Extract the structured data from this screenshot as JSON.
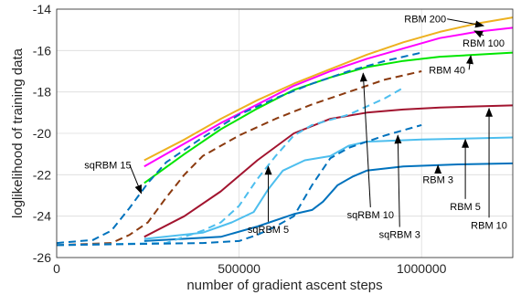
{
  "chart_data": {
    "type": "line",
    "xlabel": "number of gradient ascent steps",
    "ylabel": "loglikelihood of training data",
    "xlim": [
      0,
      1250000
    ],
    "ylim": [
      -26,
      -14
    ],
    "grid": true,
    "xticks": [
      0,
      500000,
      1000000
    ],
    "xtick_labels": [
      "0",
      "500000",
      "1000000"
    ],
    "yticks": [
      -26,
      -24,
      -22,
      -20,
      -18,
      -16,
      -14
    ],
    "ytick_labels": [
      "-26",
      "-24",
      "-22",
      "-20",
      "-18",
      "-16",
      "-14"
    ],
    "series": [
      {
        "name": "RBM 200",
        "style": "solid",
        "color": "#EDB120",
        "x": [
          240000,
          350000,
          450000,
          550000,
          650000,
          750000,
          850000,
          950000,
          1050000,
          1150000,
          1250000
        ],
        "y": [
          -21.3,
          -20.3,
          -19.3,
          -18.4,
          -17.6,
          -16.9,
          -16.2,
          -15.6,
          -15.1,
          -14.7,
          -14.4
        ]
      },
      {
        "name": "RBM 100",
        "style": "solid",
        "color": "#FF00FF",
        "x": [
          240000,
          350000,
          450000,
          550000,
          650000,
          750000,
          850000,
          950000,
          1050000,
          1150000,
          1250000
        ],
        "y": [
          -21.6,
          -20.5,
          -19.5,
          -18.6,
          -17.7,
          -17.0,
          -16.4,
          -15.9,
          -15.4,
          -15.1,
          -14.9
        ]
      },
      {
        "name": "RBM 40",
        "style": "solid",
        "color": "#00E600",
        "x": [
          240000,
          350000,
          450000,
          550000,
          650000,
          750000,
          850000,
          950000,
          1050000,
          1150000,
          1250000
        ],
        "y": [
          -22.4,
          -21.0,
          -19.8,
          -18.8,
          -17.9,
          -17.3,
          -16.8,
          -16.5,
          -16.3,
          -16.2,
          -16.1
        ]
      },
      {
        "name": "RBM 10",
        "style": "solid",
        "color": "#A2142F",
        "x": [
          240000,
          350000,
          450000,
          550000,
          650000,
          750000,
          850000,
          950000,
          1050000,
          1150000,
          1250000
        ],
        "y": [
          -25.0,
          -24.0,
          -22.8,
          -21.3,
          -20.0,
          -19.3,
          -19.0,
          -18.85,
          -18.75,
          -18.7,
          -18.65
        ]
      },
      {
        "name": "RBM 5",
        "style": "solid",
        "color": "#4DBEEE",
        "x": [
          240000,
          400000,
          480000,
          540000,
          580000,
          620000,
          680000,
          750000,
          800000,
          850000,
          1000000,
          1250000
        ],
        "y": [
          -25.1,
          -24.8,
          -24.3,
          -23.8,
          -22.7,
          -21.8,
          -21.3,
          -21.1,
          -20.6,
          -20.4,
          -20.3,
          -20.2
        ]
      },
      {
        "name": "RBM 3",
        "style": "solid",
        "color": "#0072BD",
        "x": [
          240000,
          450000,
          550000,
          650000,
          700000,
          730000,
          770000,
          810000,
          850000,
          950000,
          1100000,
          1250000
        ],
        "y": [
          -25.2,
          -25.0,
          -24.5,
          -23.9,
          -23.7,
          -23.3,
          -22.5,
          -22.1,
          -21.8,
          -21.6,
          -21.5,
          -21.45
        ]
      },
      {
        "name": "sqRBM 15",
        "style": "dashed",
        "color": "#0072BD",
        "x": [
          0,
          100000,
          150000,
          200000,
          250000,
          300000,
          400000,
          500000,
          600000,
          700000,
          800000,
          900000,
          1000000
        ],
        "y": [
          -25.3,
          -25.15,
          -24.7,
          -23.6,
          -22.4,
          -21.4,
          -20.2,
          -19.1,
          -18.3,
          -17.6,
          -17.0,
          -16.5,
          -16.1
        ]
      },
      {
        "name": "sqRBM 10",
        "style": "dashed",
        "color": "#8B3A0F",
        "x": [
          0,
          150000,
          200000,
          250000,
          300000,
          350000,
          400000,
          500000,
          600000,
          700000,
          800000,
          900000,
          1000000
        ],
        "y": [
          -25.4,
          -25.3,
          -24.9,
          -24.3,
          -23.1,
          -22.0,
          -21.1,
          -20.1,
          -19.3,
          -18.6,
          -18.0,
          -17.4,
          -17.0
        ]
      },
      {
        "name": "sqRBM 5",
        "style": "dashed",
        "color": "#4DBEEE",
        "x": [
          0,
          300000,
          350000,
          400000,
          450000,
          500000,
          550000,
          600000,
          650000,
          700000,
          800000,
          900000,
          950000
        ],
        "y": [
          -25.4,
          -25.3,
          -25.0,
          -24.7,
          -24.3,
          -23.5,
          -22.2,
          -21.1,
          -20.1,
          -19.6,
          -19.1,
          -18.3,
          -17.8
        ]
      },
      {
        "name": "sqRBM 3",
        "style": "dashed",
        "color": "#0072BD",
        "x": [
          0,
          400000,
          500000,
          550000,
          600000,
          650000,
          700000,
          750000,
          800000,
          850000,
          900000,
          1000000
        ],
        "y": [
          -25.4,
          -25.3,
          -25.2,
          -24.9,
          -24.5,
          -24.0,
          -22.5,
          -21.2,
          -20.7,
          -20.4,
          -20.1,
          -19.6
        ]
      }
    ],
    "annotations": [
      {
        "text": "RBM 200",
        "text_at": [
          1010000,
          -14.65
        ],
        "arrow_to": [
          1170000,
          -14.8
        ]
      },
      {
        "text": "RBM 100",
        "text_at": [
          1170000,
          -15.8
        ],
        "arrow_to": [
          1145000,
          -15.05
        ]
      },
      {
        "text": "RBM 40",
        "text_at": [
          1070000,
          -17.1
        ],
        "arrow_to": [
          1135000,
          -16.25
        ]
      },
      {
        "text": "RBM 3",
        "text_at": [
          1045000,
          -22.4
        ],
        "arrow_to": [
          1045000,
          -21.55
        ]
      },
      {
        "text": "RBM 5",
        "text_at": [
          1120000,
          -23.7
        ],
        "arrow_to": [
          1120000,
          -20.3
        ]
      },
      {
        "text": "RBM 10",
        "text_at": [
          1185000,
          -24.6
        ],
        "arrow_to": [
          1185000,
          -18.8
        ]
      },
      {
        "text": "sqRBM 15",
        "text_at": [
          140000,
          -21.7
        ],
        "arrow_to": [
          232000,
          -22.9
        ]
      },
      {
        "text": "sqRBM 10",
        "text_at": [
          860000,
          -24.1
        ],
        "arrow_to": [
          840000,
          -17.1
        ]
      },
      {
        "text": "sqRBM 5",
        "text_at": [
          580000,
          -24.8
        ],
        "arrow_to": [
          580000,
          -21.6
        ]
      },
      {
        "text": "sqRBM 3",
        "text_at": [
          940000,
          -25.05
        ],
        "arrow_to": [
          935000,
          -20.1
        ]
      }
    ]
  }
}
